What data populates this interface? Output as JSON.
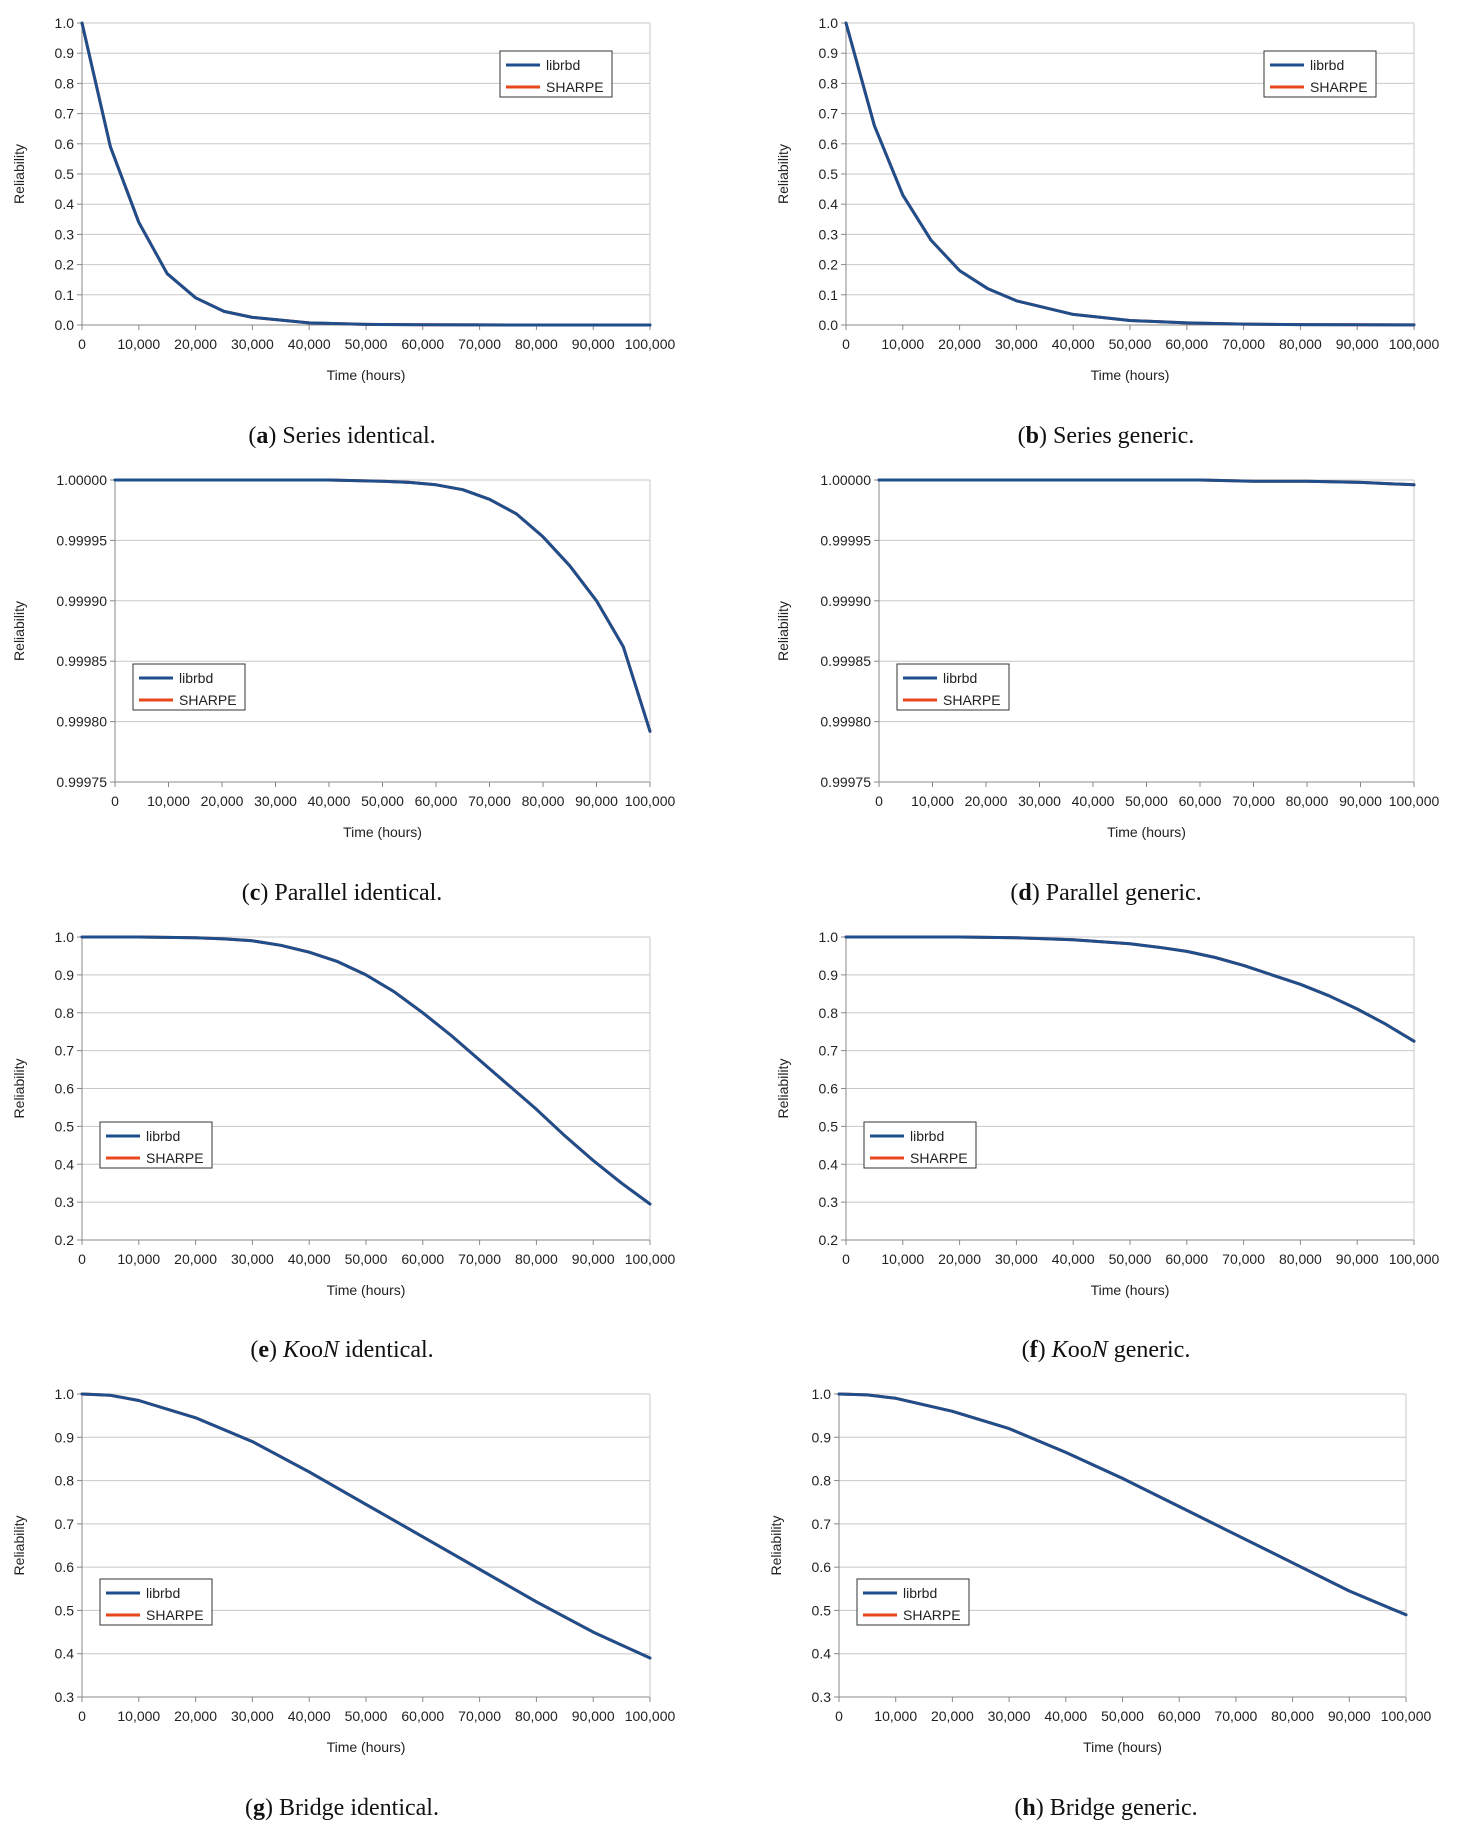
{
  "colors": {
    "librbd": "#1f4e8c",
    "sharpe": "#e8481c",
    "grid": "#c8c8c8",
    "axis": "#888888"
  },
  "chart_data": [
    {
      "id": "a",
      "type": "line",
      "caption": {
        "letter": "a",
        "text": "Series identical."
      },
      "xlabel": "Time (hours)",
      "ylabel": "Reliability",
      "xlim": [
        0,
        100000
      ],
      "ylim": [
        0,
        1
      ],
      "xticks": [
        "0",
        "10,000",
        "20,000",
        "30,000",
        "40,000",
        "50,000",
        "60,000",
        "70,000",
        "80,000",
        "90,000",
        "100,000"
      ],
      "yticks": [
        "0.0",
        "0.1",
        "0.2",
        "0.3",
        "0.4",
        "0.5",
        "0.6",
        "0.7",
        "0.8",
        "0.9",
        "1.0"
      ],
      "legend": {
        "position": "top-right",
        "entries": [
          "librbd",
          "SHARPE"
        ]
      },
      "series": [
        {
          "name": "librbd",
          "x": [
            0,
            5000,
            10000,
            15000,
            20000,
            25000,
            30000,
            40000,
            50000,
            60000,
            70000,
            80000,
            90000,
            100000
          ],
          "values": [
            1.0,
            0.59,
            0.34,
            0.17,
            0.09,
            0.045,
            0.025,
            0.007,
            0.002,
            0.0005,
            0.0002,
            0.0,
            0.0,
            0.0
          ]
        },
        {
          "name": "SHARPE",
          "x": [
            0,
            5000,
            10000,
            15000,
            20000,
            25000,
            30000,
            40000,
            50000,
            60000,
            70000,
            80000,
            90000,
            100000
          ],
          "values": [
            1.0,
            0.59,
            0.34,
            0.17,
            0.09,
            0.045,
            0.025,
            0.007,
            0.002,
            0.0005,
            0.0002,
            0.0,
            0.0,
            0.0
          ]
        }
      ]
    },
    {
      "id": "b",
      "type": "line",
      "caption": {
        "letter": "b",
        "text": "Series generic."
      },
      "xlabel": "Time (hours)",
      "ylabel": "Reliability",
      "xlim": [
        0,
        100000
      ],
      "ylim": [
        0,
        1
      ],
      "xticks": [
        "0",
        "10,000",
        "20,000",
        "30,000",
        "40,000",
        "50,000",
        "60,000",
        "70,000",
        "80,000",
        "90,000",
        "100,000"
      ],
      "yticks": [
        "0.0",
        "0.1",
        "0.2",
        "0.3",
        "0.4",
        "0.5",
        "0.6",
        "0.7",
        "0.8",
        "0.9",
        "1.0"
      ],
      "legend": {
        "position": "top-right",
        "entries": [
          "librbd",
          "SHARPE"
        ]
      },
      "series": [
        {
          "name": "librbd",
          "x": [
            0,
            5000,
            10000,
            15000,
            20000,
            25000,
            30000,
            40000,
            50000,
            60000,
            70000,
            80000,
            90000,
            100000
          ],
          "values": [
            1.0,
            0.66,
            0.43,
            0.28,
            0.18,
            0.12,
            0.08,
            0.035,
            0.015,
            0.007,
            0.003,
            0.0013,
            0.0006,
            0.0002
          ]
        },
        {
          "name": "SHARPE",
          "x": [
            0,
            5000,
            10000,
            15000,
            20000,
            25000,
            30000,
            40000,
            50000,
            60000,
            70000,
            80000,
            90000,
            100000
          ],
          "values": [
            1.0,
            0.66,
            0.43,
            0.28,
            0.18,
            0.12,
            0.08,
            0.035,
            0.015,
            0.007,
            0.003,
            0.0013,
            0.0006,
            0.0002
          ]
        }
      ]
    },
    {
      "id": "c",
      "type": "line",
      "caption": {
        "letter": "c",
        "text": "Parallel identical."
      },
      "xlabel": "Time (hours)",
      "ylabel": "Reliability",
      "xlim": [
        0,
        100000
      ],
      "ylim": [
        0.99975,
        1.0
      ],
      "xticks": [
        "0",
        "10,000",
        "20,000",
        "30,000",
        "40,000",
        "50,000",
        "60,000",
        "70,000",
        "80,000",
        "90,000",
        "100,000"
      ],
      "yticks": [
        "0.99975",
        "0.99980",
        "0.99985",
        "0.99990",
        "0.99995",
        "1.00000"
      ],
      "legend": {
        "position": "bottom-left",
        "entries": [
          "librbd",
          "SHARPE"
        ]
      },
      "series": [
        {
          "name": "librbd",
          "x": [
            0,
            10000,
            20000,
            30000,
            40000,
            50000,
            55000,
            60000,
            65000,
            70000,
            75000,
            80000,
            85000,
            90000,
            95000,
            100000
          ],
          "values": [
            1.0,
            1.0,
            1.0,
            1.0,
            1.0,
            0.999999,
            0.999998,
            0.999996,
            0.999992,
            0.999984,
            0.999972,
            0.999953,
            0.999929,
            0.9999,
            0.999862,
            0.999792
          ]
        },
        {
          "name": "SHARPE",
          "x": [
            0,
            10000,
            20000,
            30000,
            40000,
            50000,
            55000,
            60000,
            65000,
            70000,
            75000,
            80000,
            85000,
            90000,
            95000,
            100000
          ],
          "values": [
            1.0,
            1.0,
            1.0,
            1.0,
            1.0,
            0.999999,
            0.999998,
            0.999996,
            0.999992,
            0.999984,
            0.999972,
            0.999953,
            0.999929,
            0.9999,
            0.999862,
            0.999792
          ]
        }
      ]
    },
    {
      "id": "d",
      "type": "line",
      "caption": {
        "letter": "d",
        "text": "Parallel generic."
      },
      "xlabel": "Time (hours)",
      "ylabel": "Reliability",
      "xlim": [
        0,
        100000
      ],
      "ylim": [
        0.99975,
        1.0
      ],
      "xticks": [
        "0",
        "10,000",
        "20,000",
        "30,000",
        "40,000",
        "50,000",
        "60,000",
        "70,000",
        "80,000",
        "90,000",
        "100,000"
      ],
      "yticks": [
        "0.99975",
        "0.99980",
        "0.99985",
        "0.99990",
        "0.99995",
        "1.00000"
      ],
      "legend": {
        "position": "bottom-left",
        "entries": [
          "librbd",
          "SHARPE"
        ]
      },
      "series": [
        {
          "name": "librbd",
          "x": [
            0,
            20000,
            40000,
            60000,
            70000,
            80000,
            90000,
            100000
          ],
          "values": [
            1.0,
            1.0,
            1.0,
            1.0,
            0.999999,
            0.999999,
            0.999998,
            0.999996
          ]
        },
        {
          "name": "SHARPE",
          "x": [
            0,
            20000,
            40000,
            60000,
            70000,
            80000,
            90000,
            100000
          ],
          "values": [
            1.0,
            1.0,
            1.0,
            1.0,
            0.999999,
            0.999999,
            0.999998,
            0.999996
          ]
        }
      ]
    },
    {
      "id": "e",
      "type": "line",
      "caption": {
        "letter": "e",
        "text": " identical.",
        "italic": "KooN"
      },
      "xlabel": "Time (hours)",
      "ylabel": "Reliability",
      "xlim": [
        0,
        100000
      ],
      "ylim": [
        0.2,
        1.0
      ],
      "xticks": [
        "0",
        "10,000",
        "20,000",
        "30,000",
        "40,000",
        "50,000",
        "60,000",
        "70,000",
        "80,000",
        "90,000",
        "100,000"
      ],
      "yticks": [
        "0.2",
        "0.3",
        "0.4",
        "0.5",
        "0.6",
        "0.7",
        "0.8",
        "0.9",
        "1.0"
      ],
      "legend": {
        "position": "bottom-left",
        "entries": [
          "librbd",
          "SHARPE"
        ]
      },
      "series": [
        {
          "name": "librbd",
          "x": [
            0,
            10000,
            20000,
            25000,
            30000,
            35000,
            40000,
            45000,
            50000,
            55000,
            60000,
            65000,
            70000,
            75000,
            80000,
            85000,
            90000,
            95000,
            100000
          ],
          "values": [
            1.0,
            1.0,
            0.998,
            0.995,
            0.99,
            0.978,
            0.96,
            0.935,
            0.9,
            0.855,
            0.8,
            0.74,
            0.675,
            0.61,
            0.545,
            0.475,
            0.41,
            0.35,
            0.295
          ]
        },
        {
          "name": "SHARPE",
          "x": [
            0,
            10000,
            20000,
            25000,
            30000,
            35000,
            40000,
            45000,
            50000,
            55000,
            60000,
            65000,
            70000,
            75000,
            80000,
            85000,
            90000,
            95000,
            100000
          ],
          "values": [
            1.0,
            1.0,
            0.998,
            0.995,
            0.99,
            0.978,
            0.96,
            0.935,
            0.9,
            0.855,
            0.8,
            0.74,
            0.675,
            0.61,
            0.545,
            0.475,
            0.41,
            0.35,
            0.295
          ]
        }
      ]
    },
    {
      "id": "f",
      "type": "line",
      "caption": {
        "letter": "f",
        "text": " generic.",
        "italic": "KooN"
      },
      "xlabel": "Time (hours)",
      "ylabel": "Reliability",
      "xlim": [
        0,
        100000
      ],
      "ylim": [
        0.2,
        1.0
      ],
      "xticks": [
        "0",
        "10,000",
        "20,000",
        "30,000",
        "40,000",
        "50,000",
        "60,000",
        "70,000",
        "80,000",
        "90,000",
        "100,000"
      ],
      "yticks": [
        "0.2",
        "0.3",
        "0.4",
        "0.5",
        "0.6",
        "0.7",
        "0.8",
        "0.9",
        "1.0"
      ],
      "legend": {
        "position": "bottom-left",
        "entries": [
          "librbd",
          "SHARPE"
        ]
      },
      "series": [
        {
          "name": "librbd",
          "x": [
            0,
            10000,
            20000,
            30000,
            40000,
            50000,
            55000,
            60000,
            65000,
            70000,
            75000,
            80000,
            85000,
            90000,
            95000,
            100000
          ],
          "values": [
            1.0,
            1.0,
            1.0,
            0.998,
            0.993,
            0.982,
            0.973,
            0.962,
            0.946,
            0.925,
            0.9,
            0.875,
            0.845,
            0.81,
            0.77,
            0.725
          ]
        },
        {
          "name": "SHARPE",
          "x": [
            0,
            10000,
            20000,
            30000,
            40000,
            50000,
            55000,
            60000,
            65000,
            70000,
            75000,
            80000,
            85000,
            90000,
            95000,
            100000
          ],
          "values": [
            1.0,
            1.0,
            1.0,
            0.998,
            0.993,
            0.982,
            0.973,
            0.962,
            0.946,
            0.925,
            0.9,
            0.875,
            0.845,
            0.81,
            0.77,
            0.725
          ]
        }
      ]
    },
    {
      "id": "g",
      "type": "line",
      "caption": {
        "letter": "g",
        "text": "Bridge identical."
      },
      "xlabel": "Time (hours)",
      "ylabel": "Reliability",
      "xlim": [
        0,
        100000
      ],
      "ylim": [
        0.3,
        1.0
      ],
      "xticks": [
        "0",
        "10,000",
        "20,000",
        "30,000",
        "40,000",
        "50,000",
        "60,000",
        "70,000",
        "80,000",
        "90,000",
        "100,000"
      ],
      "yticks": [
        "0.3",
        "0.4",
        "0.5",
        "0.6",
        "0.7",
        "0.8",
        "0.9",
        "1.0"
      ],
      "legend": {
        "position": "bottom-left",
        "entries": [
          "librbd",
          "SHARPE"
        ]
      },
      "series": [
        {
          "name": "librbd",
          "x": [
            0,
            5000,
            10000,
            20000,
            30000,
            40000,
            50000,
            60000,
            70000,
            80000,
            90000,
            100000
          ],
          "values": [
            1.0,
            0.997,
            0.985,
            0.945,
            0.89,
            0.82,
            0.745,
            0.67,
            0.595,
            0.52,
            0.45,
            0.39
          ]
        },
        {
          "name": "SHARPE",
          "x": [
            0,
            5000,
            10000,
            20000,
            30000,
            40000,
            50000,
            60000,
            70000,
            80000,
            90000,
            100000
          ],
          "values": [
            1.0,
            0.997,
            0.985,
            0.945,
            0.89,
            0.82,
            0.745,
            0.67,
            0.595,
            0.52,
            0.45,
            0.39
          ]
        }
      ]
    },
    {
      "id": "h",
      "type": "line",
      "caption": {
        "letter": "h",
        "text": "Bridge generic."
      },
      "xlabel": "Time (hours)",
      "ylabel": "Reliability",
      "xlim": [
        0,
        100000
      ],
      "ylim": [
        0.3,
        1.0
      ],
      "xticks": [
        "0",
        "10,000",
        "20,000",
        "30,000",
        "40,000",
        "50,000",
        "60,000",
        "70,000",
        "80,000",
        "90,000",
        "100,000"
      ],
      "yticks": [
        "0.3",
        "0.4",
        "0.5",
        "0.6",
        "0.7",
        "0.8",
        "0.9",
        "1.0"
      ],
      "legend": {
        "position": "bottom-left",
        "entries": [
          "librbd",
          "SHARPE"
        ]
      },
      "series": [
        {
          "name": "librbd",
          "x": [
            0,
            5000,
            10000,
            20000,
            30000,
            40000,
            50000,
            60000,
            70000,
            80000,
            90000,
            100000
          ],
          "values": [
            1.0,
            0.998,
            0.99,
            0.96,
            0.92,
            0.865,
            0.805,
            0.74,
            0.675,
            0.61,
            0.545,
            0.49
          ]
        },
        {
          "name": "SHARPE",
          "x": [
            0,
            5000,
            10000,
            20000,
            30000,
            40000,
            50000,
            60000,
            70000,
            80000,
            90000,
            100000
          ],
          "values": [
            1.0,
            0.998,
            0.99,
            0.96,
            0.92,
            0.865,
            0.805,
            0.74,
            0.675,
            0.61,
            0.545,
            0.49
          ]
        }
      ]
    }
  ]
}
